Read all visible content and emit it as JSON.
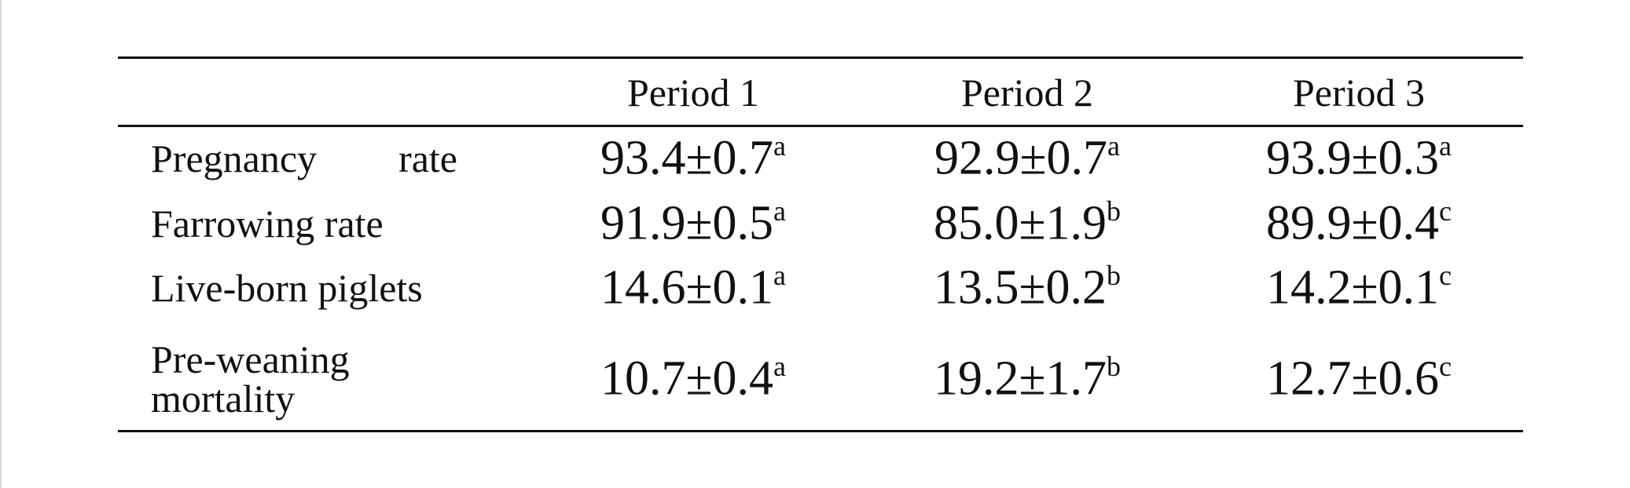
{
  "table": {
    "header": [
      "Period 1",
      "Period 2",
      "Period 3"
    ],
    "rows": [
      {
        "label": "Pregnancy rate",
        "cells": [
          {
            "value": "93.4±0.7",
            "sup": "a"
          },
          {
            "value": "92.9±0.7",
            "sup": "a"
          },
          {
            "value": "93.9±0.3",
            "sup": "a"
          }
        ]
      },
      {
        "label": "Farrowing rate",
        "cells": [
          {
            "value": "91.9±0.5",
            "sup": "a"
          },
          {
            "value": "85.0±1.9",
            "sup": "b"
          },
          {
            "value": "89.9±0.4",
            "sup": "c"
          }
        ]
      },
      {
        "label": "Live-born piglets",
        "cells": [
          {
            "value": "14.6±0.1",
            "sup": "a"
          },
          {
            "value": "13.5±0.2",
            "sup": "b"
          },
          {
            "value": "14.2±0.1",
            "sup": "c"
          }
        ]
      },
      {
        "label": "Pre-weaning mortality",
        "cells": [
          {
            "value": "10.7±0.4",
            "sup": "a"
          },
          {
            "value": "19.2±1.7",
            "sup": "b"
          },
          {
            "value": "12.7±0.6",
            "sup": "c"
          }
        ]
      }
    ]
  }
}
